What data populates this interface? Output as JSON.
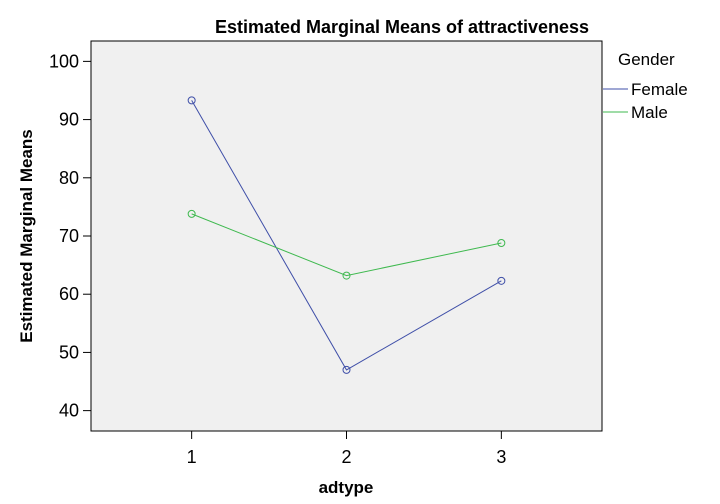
{
  "chart_data": {
    "type": "line",
    "title": "Estimated Marginal Means of attractiveness",
    "xlabel": "adtype",
    "ylabel": "Estimated Marginal Means",
    "x": [
      1,
      2,
      3
    ],
    "xlim": [
      0.35,
      3.65
    ],
    "ylim": [
      36.5,
      103.5
    ],
    "yticks": [
      40,
      50,
      60,
      70,
      80,
      90,
      100
    ],
    "grid": false,
    "legend": {
      "title": "Gender",
      "placement": "right"
    },
    "series": [
      {
        "name": "Female",
        "color": "#3f4fa8",
        "values": [
          93.3,
          47.0,
          62.3
        ]
      },
      {
        "name": "Male",
        "color": "#3fb94f",
        "values": [
          73.8,
          63.2,
          68.8
        ]
      }
    ]
  },
  "colors": {
    "plot_background": "#f0f0f0",
    "frame": "#000000"
  }
}
